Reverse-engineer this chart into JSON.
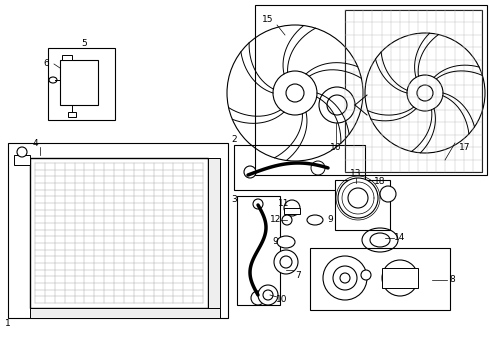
{
  "bg_color": "#ffffff",
  "line_color": "#000000",
  "label_fontsize": 6.5,
  "boxes": {
    "fan_shroud": [
      0.52,
      0.56,
      0.97,
      0.98
    ],
    "radiator": [
      0.07,
      0.18,
      0.46,
      0.74
    ],
    "reservoir": [
      0.1,
      0.75,
      0.24,
      0.92
    ],
    "hose_upper": [
      0.36,
      0.72,
      0.61,
      0.83
    ],
    "hose_lower": [
      0.38,
      0.43,
      0.47,
      0.72
    ],
    "thermostat": [
      0.61,
      0.43,
      0.82,
      0.68
    ]
  }
}
